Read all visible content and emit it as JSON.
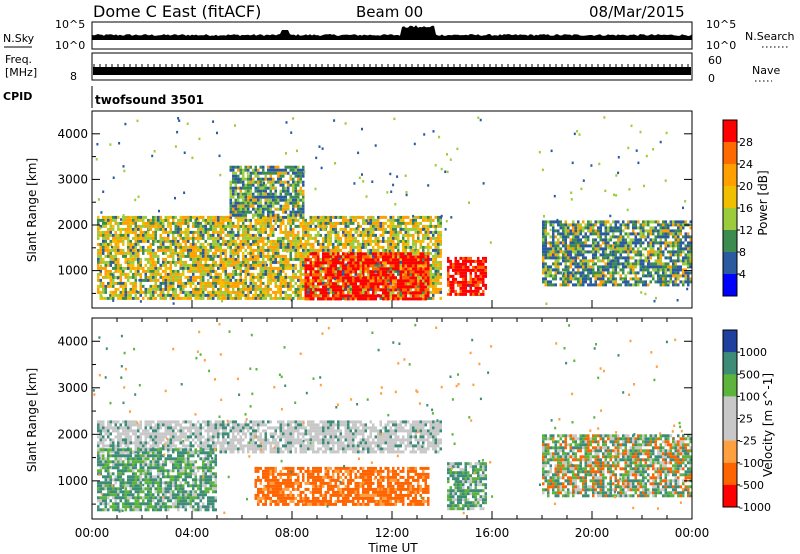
{
  "header": {
    "station": "Dome C East (fitACF)",
    "beam": "Beam 00",
    "date": "08/Mar/2015"
  },
  "noise_panel": {
    "left_label": "N.Sky",
    "right_label": "N.Search",
    "left_ticks": [
      "10^5",
      "10^0"
    ],
    "right_ticks": [
      "10^5",
      "10^0"
    ]
  },
  "freq_panel": {
    "left_label_line1": "Freq.",
    "left_label_line2": "[MHz]",
    "left_ticks": [
      "8"
    ],
    "right_label": "Nave",
    "right_ticks": [
      "60",
      "0"
    ]
  },
  "cpid_panel": {
    "label": "CPID",
    "program": "twofsound 3501"
  },
  "time_axis": {
    "title": "Time UT",
    "ticks": [
      "00:00",
      "04:00",
      "08:00",
      "12:00",
      "16:00",
      "20:00",
      "00:00"
    ]
  },
  "chart_data": [
    {
      "type": "heatmap",
      "title": "",
      "quantity": "Power",
      "ylabel": "Slant Range [km]",
      "xlabel": "Time UT",
      "x_ticks": [
        "00:00",
        "04:00",
        "08:00",
        "12:00",
        "16:00",
        "20:00",
        "00:00"
      ],
      "y_ticks": [
        1000,
        2000,
        3000,
        4000
      ],
      "ylim": [
        180,
        4500
      ],
      "xlim_hours": [
        0,
        24
      ],
      "colorbar": {
        "label": "Power [dB]",
        "ticks": [
          "28",
          "24",
          "20",
          "16",
          "12",
          "8",
          "4"
        ],
        "colors": [
          "#ff0000",
          "#ff6a00",
          "#ffa000",
          "#f0c000",
          "#9ccc3c",
          "#3c8c50",
          "#2a5aa0",
          "#0000ff"
        ]
      },
      "echo_regions": [
        {
          "t_start": 0.2,
          "t_end": 14.0,
          "range_min": 400,
          "range_max": 2200,
          "level": "medium"
        },
        {
          "t_start": 5.5,
          "t_end": 8.5,
          "range_min": 2200,
          "range_max": 3300,
          "level": "low"
        },
        {
          "t_start": 8.5,
          "t_end": 13.5,
          "range_min": 350,
          "range_max": 1400,
          "level": "high"
        },
        {
          "t_start": 14.2,
          "t_end": 15.8,
          "range_min": 500,
          "range_max": 1300,
          "level": "high"
        },
        {
          "t_start": 18.0,
          "t_end": 24.0,
          "range_min": 700,
          "range_max": 2100,
          "level": "low"
        }
      ]
    },
    {
      "type": "heatmap",
      "title": "",
      "quantity": "Velocity",
      "ylabel": "Slant Range [km]",
      "xlabel": "Time UT",
      "x_ticks": [
        "00:00",
        "04:00",
        "08:00",
        "12:00",
        "16:00",
        "20:00",
        "00:00"
      ],
      "y_ticks": [
        1000,
        2000,
        3000,
        4000
      ],
      "ylim": [
        180,
        4500
      ],
      "xlim_hours": [
        0,
        24
      ],
      "colorbar": {
        "label": "Velocity [m s^-1]",
        "ticks": [
          "1000",
          "500",
          "100",
          "25",
          "-25",
          "-100",
          "-500",
          "-1000"
        ],
        "colors": [
          "#2040a0",
          "#3c8c78",
          "#5cb43c",
          "#c8c8c8",
          "#c8c8c8",
          "#ffa040",
          "#ff6400",
          "#ff0000"
        ]
      },
      "echo_regions": [
        {
          "t_start": 0.2,
          "t_end": 14.0,
          "range_min": 1600,
          "range_max": 2300,
          "level": "near-zero"
        },
        {
          "t_start": 6.5,
          "t_end": 13.5,
          "range_min": 500,
          "range_max": 1300,
          "level": "negative"
        },
        {
          "t_start": 0.2,
          "t_end": 5.0,
          "range_min": 400,
          "range_max": 1700,
          "level": "positive"
        },
        {
          "t_start": 14.2,
          "t_end": 15.8,
          "range_min": 400,
          "range_max": 1400,
          "level": "positive"
        },
        {
          "t_start": 18.0,
          "t_end": 24.0,
          "range_min": 700,
          "range_max": 2000,
          "level": "mixed"
        }
      ]
    }
  ]
}
